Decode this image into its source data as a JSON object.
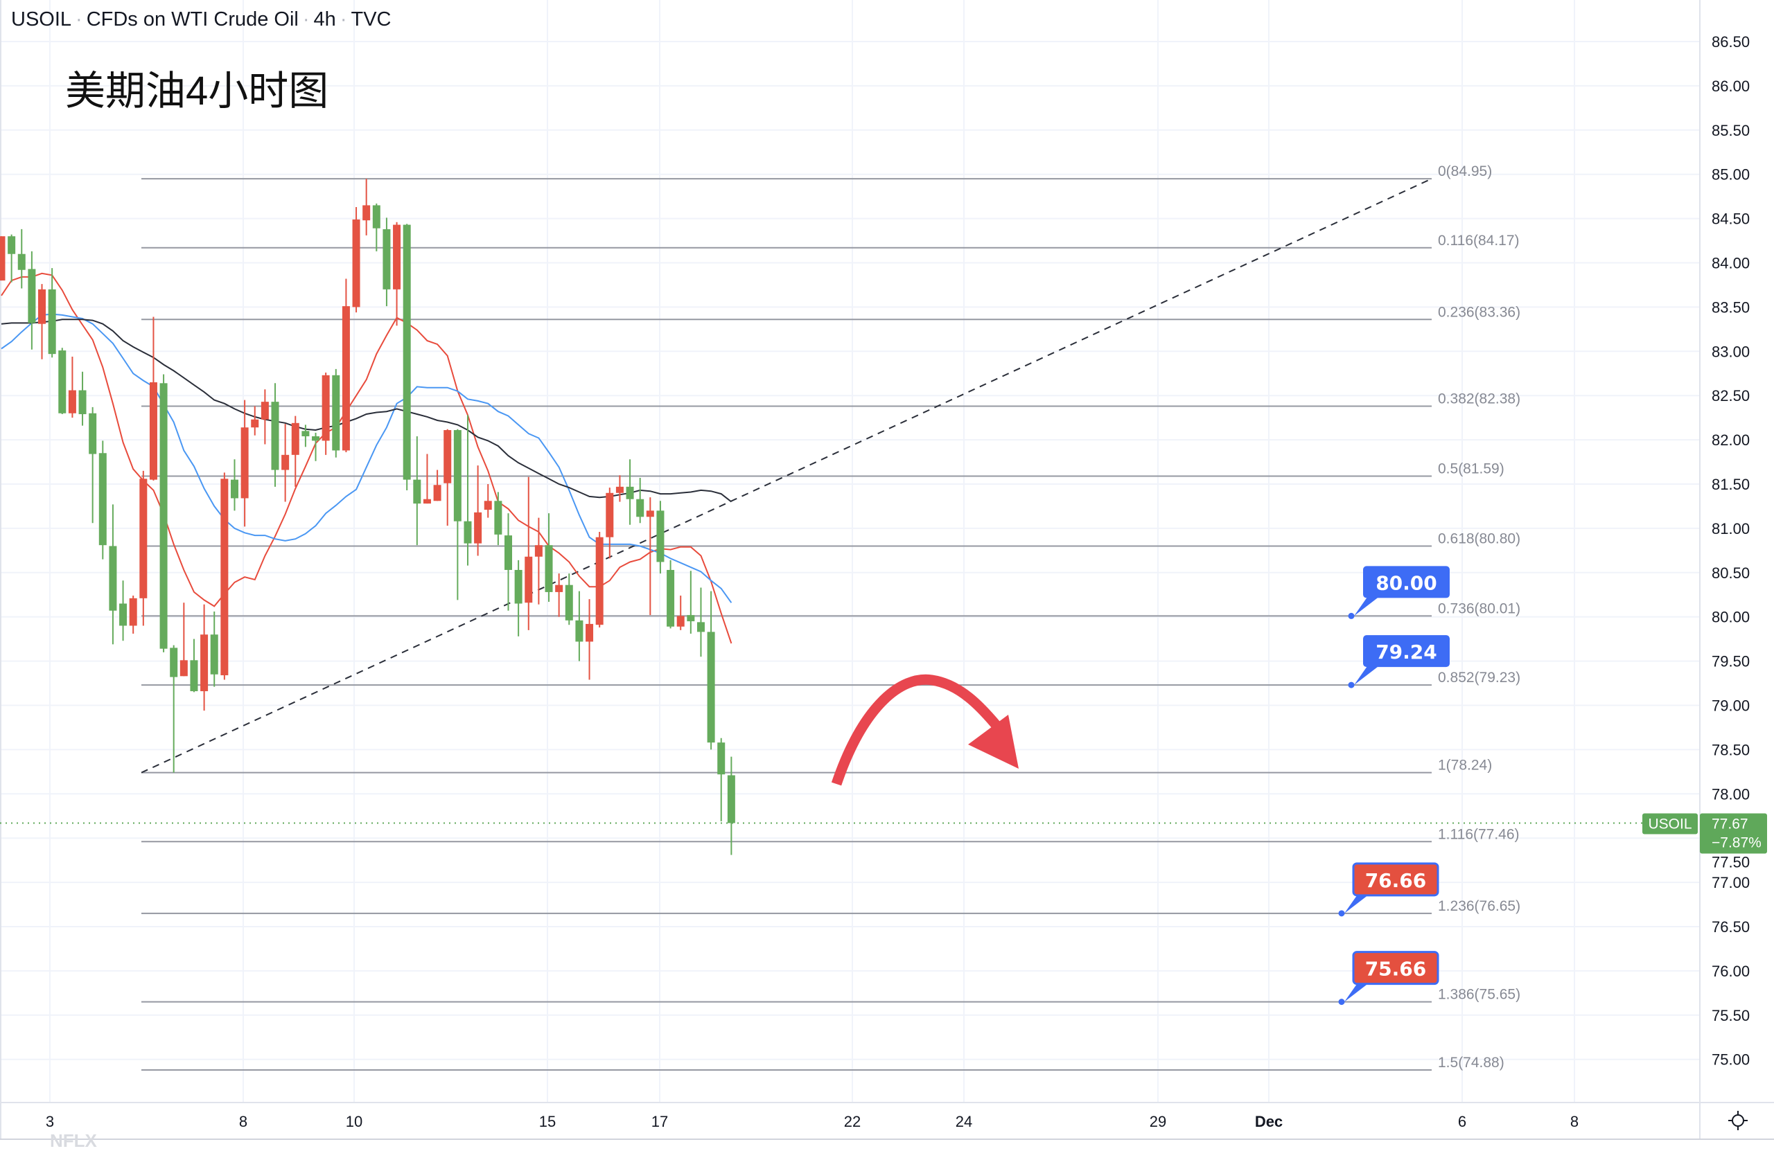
{
  "header": {
    "symbol": "USOIL",
    "description": "CFDs on WTI Crude Oil",
    "interval": "4h",
    "exchange": "TVC",
    "separator": "·"
  },
  "annotation_title": "美期油4小时图",
  "watermark": "NFLX",
  "settings_icon": "gear-icon",
  "colors": {
    "up_candle": "#e45343",
    "down_candle": "#65ab5c",
    "ma_fast": "#e84b3c",
    "ma_mid": "#4a97f3",
    "ma_slow": "#2a2e39",
    "fib_line": "#9598a1",
    "callout_blue": "#3d6cf5",
    "callout_red": "#e4503f",
    "arrow": "#e8464f",
    "last_price": "#5fa85a"
  },
  "last_price": {
    "symbol": "USOIL",
    "price": "77.67",
    "change": "−7.87%",
    "value": 77.67
  },
  "callouts": [
    {
      "text": "80.00",
      "price": 80.0,
      "style": "blue"
    },
    {
      "text": "79.24",
      "price": 79.24,
      "style": "blue"
    },
    {
      "text": "76.66",
      "price": 76.66,
      "style": "red"
    },
    {
      "text": "75.66",
      "price": 75.66,
      "style": "red"
    }
  ],
  "chart_data": {
    "type": "candlestick",
    "title": "USOIL · CFDs on WTI Crude Oil · 4h · TVC",
    "color_convention": "red = up, green = down",
    "y_range": [
      74.75,
      86.75
    ],
    "y_ticks": [
      "86.50",
      "86.00",
      "85.50",
      "85.00",
      "84.50",
      "84.00",
      "83.50",
      "83.00",
      "82.50",
      "82.00",
      "81.50",
      "81.00",
      "80.50",
      "80.00",
      "79.50",
      "79.00",
      "78.50",
      "78.00",
      "77.50",
      "77.00",
      "76.50",
      "76.00",
      "75.50",
      "75.00"
    ],
    "x_ticks": [
      "3",
      "8",
      "10",
      "15",
      "17",
      "22",
      "24",
      "29",
      "Dec",
      "6",
      "8"
    ],
    "grid": true,
    "candles_ohlc": [
      [
        83.8,
        84.3,
        83.8,
        84.3
      ],
      [
        84.3,
        84.32,
        83.78,
        84.1
      ],
      [
        84.1,
        84.38,
        83.71,
        83.92
      ],
      [
        83.93,
        84.13,
        83.02,
        83.32
      ],
      [
        83.31,
        83.76,
        82.91,
        83.7
      ],
      [
        83.7,
        83.94,
        82.93,
        82.97
      ],
      [
        83.01,
        83.04,
        82.29,
        82.3
      ],
      [
        82.3,
        82.94,
        82.25,
        82.56
      ],
      [
        82.56,
        82.77,
        82.16,
        82.29
      ],
      [
        82.3,
        82.37,
        81.06,
        81.84
      ],
      [
        81.85,
        81.99,
        80.65,
        80.81
      ],
      [
        80.8,
        81.27,
        79.69,
        80.07
      ],
      [
        80.15,
        80.41,
        79.73,
        79.9
      ],
      [
        79.9,
        80.24,
        79.81,
        80.21
      ],
      [
        80.21,
        81.65,
        79.9,
        81.56
      ],
      [
        81.55,
        83.39,
        81.54,
        82.65
      ],
      [
        82.64,
        82.74,
        79.6,
        79.64
      ],
      [
        79.65,
        79.68,
        78.24,
        79.32
      ],
      [
        79.33,
        80.16,
        79.33,
        79.51
      ],
      [
        79.51,
        79.75,
        79.15,
        79.16
      ],
      [
        79.16,
        80.14,
        78.94,
        79.8
      ],
      [
        79.8,
        80.06,
        79.21,
        79.35
      ],
      [
        79.34,
        81.63,
        79.29,
        81.56
      ],
      [
        81.55,
        81.78,
        81.2,
        81.34
      ],
      [
        81.34,
        82.45,
        81.02,
        82.14
      ],
      [
        82.14,
        82.38,
        82.05,
        82.23
      ],
      [
        82.23,
        82.57,
        81.95,
        82.43
      ],
      [
        82.43,
        82.64,
        81.47,
        81.66
      ],
      [
        81.66,
        82.18,
        81.3,
        81.83
      ],
      [
        81.83,
        82.27,
        81.47,
        82.19
      ],
      [
        82.1,
        82.17,
        81.92,
        82.04
      ],
      [
        82.04,
        82.08,
        81.76,
        81.99
      ],
      [
        81.99,
        82.76,
        81.83,
        82.73
      ],
      [
        82.73,
        82.8,
        81.8,
        81.88
      ],
      [
        81.88,
        83.82,
        81.86,
        83.51
      ],
      [
        83.5,
        84.63,
        83.44,
        84.49
      ],
      [
        84.48,
        84.95,
        84.31,
        84.65
      ],
      [
        84.65,
        84.67,
        84.13,
        84.39
      ],
      [
        84.38,
        84.51,
        83.51,
        83.7
      ],
      [
        83.7,
        84.46,
        83.29,
        84.43
      ],
      [
        84.43,
        84.44,
        81.43,
        81.55
      ],
      [
        81.55,
        82.04,
        80.81,
        81.28
      ],
      [
        81.28,
        81.84,
        81.28,
        81.33
      ],
      [
        81.31,
        81.66,
        81.31,
        81.49
      ],
      [
        81.51,
        82.12,
        81.03,
        82.11
      ],
      [
        82.11,
        82.12,
        80.19,
        81.08
      ],
      [
        81.08,
        82.28,
        80.58,
        80.83
      ],
      [
        80.83,
        81.71,
        80.69,
        81.18
      ],
      [
        81.21,
        81.5,
        81.12,
        81.31
      ],
      [
        81.31,
        81.41,
        80.81,
        80.93
      ],
      [
        80.92,
        81.17,
        80.07,
        80.53
      ],
      [
        80.53,
        80.64,
        79.78,
        80.15
      ],
      [
        80.16,
        81.58,
        79.85,
        80.68
      ],
      [
        80.68,
        81.12,
        80.14,
        80.81
      ],
      [
        80.81,
        81.17,
        80.17,
        80.28
      ],
      [
        80.28,
        80.49,
        80.0,
        80.36
      ],
      [
        80.36,
        80.49,
        79.91,
        79.96
      ],
      [
        79.96,
        80.29,
        79.5,
        79.72
      ],
      [
        79.72,
        80.2,
        79.29,
        79.92
      ],
      [
        79.91,
        80.96,
        79.88,
        80.9
      ],
      [
        80.9,
        81.46,
        80.66,
        81.4
      ],
      [
        81.4,
        81.6,
        81.3,
        81.47
      ],
      [
        81.47,
        81.78,
        81.04,
        81.33
      ],
      [
        81.33,
        81.57,
        81.06,
        81.13
      ],
      [
        81.13,
        81.35,
        80.02,
        81.2
      ],
      [
        81.2,
        81.31,
        80.49,
        80.62
      ],
      [
        80.53,
        80.64,
        79.87,
        79.89
      ],
      [
        79.89,
        80.24,
        79.85,
        80.01
      ],
      [
        80.02,
        80.52,
        79.81,
        79.95
      ],
      [
        79.94,
        80.33,
        79.55,
        79.83
      ],
      [
        79.83,
        80.29,
        78.5,
        78.58
      ],
      [
        78.58,
        78.63,
        77.69,
        78.22
      ],
      [
        78.21,
        78.42,
        77.31,
        77.67
      ]
    ],
    "moving_averages": [
      {
        "color": "#e84b3c",
        "values": [
          83.63,
          83.8,
          83.84,
          83.84,
          83.88,
          83.86,
          83.69,
          83.47,
          83.3,
          83.13,
          82.82,
          82.41,
          81.97,
          81.67,
          81.54,
          81.43,
          81.16,
          80.82,
          80.53,
          80.28,
          80.19,
          80.12,
          80.26,
          80.39,
          80.45,
          80.42,
          80.69,
          80.91,
          81.16,
          81.45,
          81.7,
          81.96,
          82.08,
          82.14,
          82.32,
          82.5,
          82.68,
          82.97,
          83.18,
          83.38,
          83.32,
          83.24,
          83.12,
          83.08,
          82.95,
          82.55,
          82.28,
          81.92,
          81.65,
          81.3,
          81.22,
          81.09,
          81.02,
          80.96,
          80.8,
          80.72,
          80.62,
          80.46,
          80.34,
          80.34,
          80.41,
          80.56,
          80.62,
          80.65,
          80.73,
          80.77,
          80.76,
          80.79,
          80.79,
          80.69,
          80.4,
          80.04,
          79.7
        ]
      },
      {
        "color": "#4a97f3",
        "values": [
          83.03,
          83.11,
          83.22,
          83.32,
          83.41,
          83.42,
          83.41,
          83.39,
          83.37,
          83.31,
          83.2,
          83.09,
          82.92,
          82.75,
          82.67,
          82.6,
          82.4,
          82.2,
          81.88,
          81.7,
          81.45,
          81.25,
          81.1,
          81.0,
          80.95,
          80.92,
          80.92,
          80.88,
          80.86,
          80.88,
          80.94,
          81.03,
          81.17,
          81.26,
          81.36,
          81.44,
          81.69,
          81.94,
          82.14,
          82.41,
          82.48,
          82.6,
          82.59,
          82.59,
          82.59,
          82.55,
          82.46,
          82.44,
          82.41,
          82.32,
          82.27,
          82.17,
          82.07,
          82.02,
          81.86,
          81.69,
          81.43,
          81.15,
          80.9,
          80.82,
          80.82,
          80.82,
          80.82,
          80.8,
          80.76,
          80.72,
          80.66,
          80.61,
          80.56,
          80.51,
          80.41,
          80.32,
          80.16
        ]
      },
      {
        "color": "#2a2e39",
        "values": [
          83.31,
          83.32,
          83.32,
          83.32,
          83.33,
          83.34,
          83.36,
          83.36,
          83.36,
          83.35,
          83.31,
          83.23,
          83.12,
          83.05,
          82.99,
          82.93,
          82.85,
          82.78,
          82.7,
          82.62,
          82.54,
          82.45,
          82.41,
          82.35,
          82.3,
          82.26,
          82.23,
          82.21,
          82.19,
          82.15,
          82.12,
          82.11,
          82.14,
          82.16,
          82.2,
          82.24,
          82.29,
          82.31,
          82.32,
          82.35,
          82.32,
          82.29,
          82.26,
          82.22,
          82.2,
          82.17,
          82.11,
          82.03,
          81.99,
          81.93,
          81.82,
          81.74,
          81.68,
          81.62,
          81.56,
          81.5,
          81.46,
          81.41,
          81.36,
          81.35,
          81.36,
          81.38,
          81.4,
          81.43,
          81.42,
          81.39,
          81.39,
          81.4,
          81.41,
          81.43,
          81.42,
          81.39,
          81.3
        ]
      }
    ],
    "fib_retracement": {
      "from_price": 78.24,
      "to_price": 84.95,
      "levels": [
        {
          "label": "0(84.95)",
          "price": 84.95
        },
        {
          "label": "0.116(84.17)",
          "price": 84.17
        },
        {
          "label": "0.236(83.36)",
          "price": 83.36
        },
        {
          "label": "0.382(82.38)",
          "price": 82.38
        },
        {
          "label": "0.5(81.59)",
          "price": 81.59
        },
        {
          "label": "0.618(80.80)",
          "price": 80.8
        },
        {
          "label": "0.736(80.01)",
          "price": 80.01
        },
        {
          "label": "0.852(79.23)",
          "price": 79.23
        },
        {
          "label": "1(78.24)",
          "price": 78.24
        },
        {
          "label": "1.116(77.46)",
          "price": 77.46
        },
        {
          "label": "1.236(76.65)",
          "price": 76.65
        },
        {
          "label": "1.386(75.65)",
          "price": 75.65
        },
        {
          "label": "1.5(74.88)",
          "price": 74.88
        }
      ]
    }
  }
}
